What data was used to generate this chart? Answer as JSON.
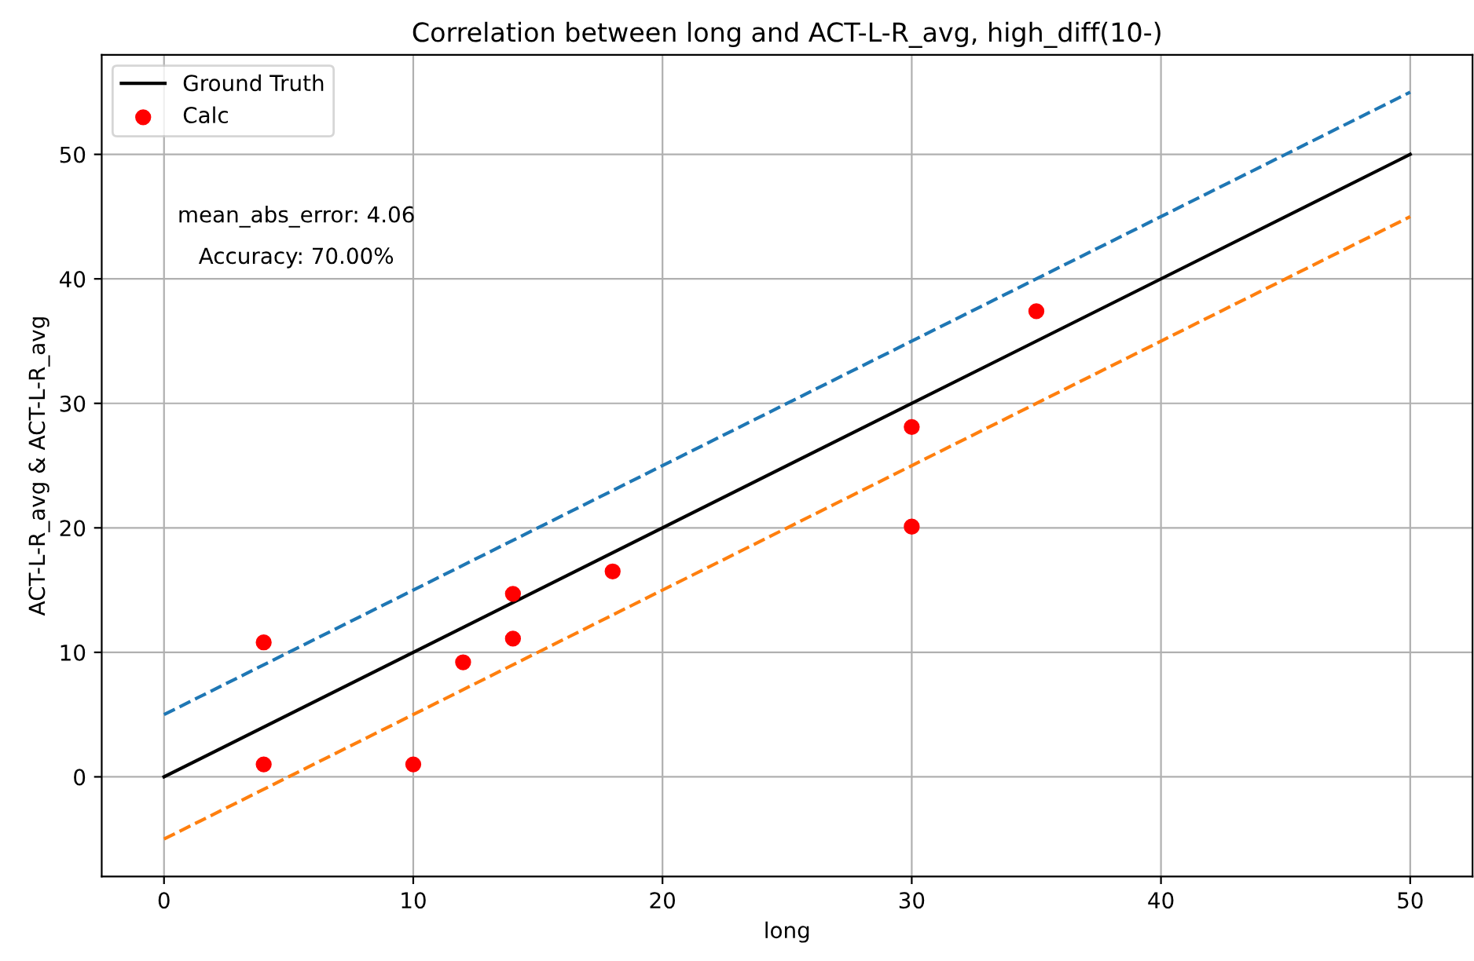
{
  "chart_data": {
    "type": "scatter",
    "title": "Correlation between long and ACT-L-R_avg, high_diff(10-)",
    "xlabel": "long",
    "ylabel": "ACT-L-R_avg & ACT-L-R_avg",
    "series": [
      {
        "name": "Ground Truth",
        "type": "line",
        "color": "#000000",
        "x": [
          0,
          50
        ],
        "values": [
          0,
          50
        ],
        "line_style": "solid",
        "marker": "none"
      },
      {
        "type": "line",
        "color": "#1f77b4",
        "x": [
          0,
          50
        ],
        "values": [
          5,
          55
        ],
        "line_style": "dashed",
        "marker": "none"
      },
      {
        "type": "line",
        "color": "#ff7f0e",
        "x": [
          0,
          50
        ],
        "values": [
          -5,
          45
        ],
        "line_style": "dashed",
        "marker": "none"
      },
      {
        "name": "Calc",
        "color": "#ff0000",
        "x": [
          4,
          4,
          10,
          12,
          14,
          14,
          18,
          30,
          30,
          35
        ],
        "values": [
          10.8,
          1.0,
          1.0,
          9.2,
          14.7,
          11.1,
          16.5,
          28.1,
          20.1,
          37.4
        ],
        "marker": "circle"
      }
    ],
    "annotations": [
      "mean_abs_error: 4.06",
      "Accuracy: 70.00%"
    ],
    "xlim": [
      -2.5,
      52.5
    ],
    "ylim": [
      -8,
      58
    ],
    "xticks": [
      0,
      10,
      20,
      30,
      40,
      50
    ],
    "yticks": [
      0,
      10,
      20,
      30,
      40,
      50
    ],
    "grid": true,
    "legend": "top left"
  }
}
